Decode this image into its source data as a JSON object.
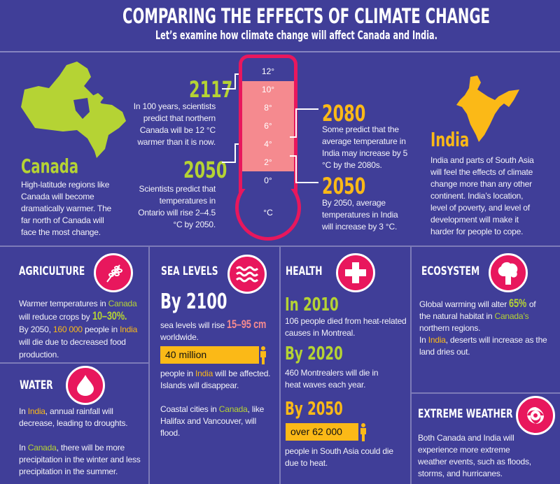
{
  "header": {
    "title": "COMPARING THE EFFECTS OF CLIMATE CHANGE",
    "subtitle": "Let’s examine how climate change will affect Canada and India."
  },
  "colors": {
    "background": "#403e98",
    "canada": "#b5d334",
    "india": "#fbb917",
    "accent": "#e8175d",
    "thermo_fill": "#f58a8f"
  },
  "canada": {
    "name": "Canada",
    "text": "High-latitude regions like Canada will become dramatically warmer. The far north of Canada will face the most change.",
    "facts": [
      {
        "year": "2117",
        "text": "In 100 years, scientists predict that northern Canada will be 12 °C warmer than it is now."
      },
      {
        "year": "2050",
        "text": "Scientists predict that temperatures in Ontario will rise 2–4.5 °C by 2050."
      }
    ]
  },
  "india": {
    "name": "India",
    "text": "India and parts of South Asia will feel the effects of climate change more than any other continent. India’s location, level of poverty, and level of development will make it harder for people to cope.",
    "facts": [
      {
        "year": "2080",
        "text": "Some predict that the average temperature in India may increase by 5 °C by the 2080s."
      },
      {
        "year": "2050",
        "text": "By 2050, average temperatures in India will increase by 3 °C."
      }
    ]
  },
  "thermometer": {
    "labels": [
      "12°",
      "10°",
      "8°",
      "6°",
      "4°",
      "2°",
      "0°"
    ],
    "unit": "°C",
    "fill_from": 2,
    "fill_to": 11
  },
  "agriculture": {
    "title": "AGRICULTURE",
    "icon": "wheat-icon",
    "t1": "Warmer temperatures in ",
    "c1": "Canada",
    "t2": "will reduce crops by ",
    "pct": "10–30%.",
    "t3": "By 2050, ",
    "num": "160 000",
    "t4": " people in ",
    "c2": "India",
    "t5": " will die due to decreased food production."
  },
  "water": {
    "title": "WATER",
    "icon": "water-drop-icon",
    "t1": "In ",
    "c1": "India",
    "t2": ", annual rainfall will decrease, leading to droughts.",
    "t3": "In ",
    "c2": "Canada",
    "t4": ", there will be more precipitation in the winter and less precipitation in the summer."
  },
  "sea": {
    "title": "SEA LEVELS",
    "icon": "waves-icon",
    "year": "By 2100",
    "t1": "sea levels will rise ",
    "range": "15–95 cm",
    "t2": "worldwide.",
    "bar": "40 million",
    "t3": "people in ",
    "c1": "India",
    "t4": " will be affected. Islands will disappear.",
    "t5": "Coastal cities in ",
    "c2": "Canada",
    "t6": ", like Halifax and Vancouver, will flood."
  },
  "health": {
    "title": "HEALTH",
    "icon": "medical-cross-icon",
    "y1": "In 2010",
    "t1": "106 people died from heat-related causes in Montreal.",
    "y2": "By 2020",
    "t2": "460 Montrealers will die in heat waves each year.",
    "y3": "By 2050",
    "bar": "over 62 000",
    "t3": "people in South Asia could die due to heat."
  },
  "ecosystem": {
    "title": "ECOSYSTEM",
    "icon": "tree-icon",
    "t1": "Global warming will alter ",
    "pct": "65%",
    "t2": " of the natural habitat in ",
    "c1": "Canada’s",
    "t3": " northern regions.",
    "t4": "In ",
    "c2": "India",
    "t5": ", deserts will increase as the land dries out."
  },
  "weather": {
    "title": "EXTREME WEATHER",
    "icon": "hurricane-icon",
    "t1": "Both Canada and India will experience more extreme weather events, such as floods, storms, and hurricanes."
  }
}
